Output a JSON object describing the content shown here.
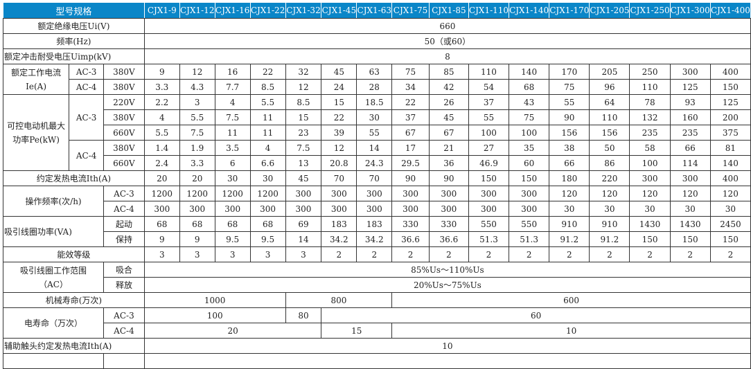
{
  "header": {
    "label": "型号规格",
    "models": [
      "CJX1-9",
      "CJX1-12",
      "CJX1-16",
      "CJX1-22",
      "CJX1-32",
      "CJX1-45",
      "CJX1-63",
      "CJX1-75",
      "CJX1-85",
      "CJX1-110",
      "CJX1-140",
      "CJX1-170",
      "CJX1-205",
      "CJX1-250",
      "CJX1-300",
      "CJX1-400"
    ]
  },
  "colors": {
    "header_bg": "#0A86C8",
    "header_text": "#FFFFFF"
  },
  "ui": {
    "label": "额定绝缘电压Ui(V)",
    "value": "660"
  },
  "freq": {
    "label": "频率(Hz)",
    "value": "50（或60）"
  },
  "uimp": {
    "label": "额定冲击耐受电压Uimp(kV)",
    "value": "8"
  },
  "ie": {
    "label": "额定工作电流Ie(A)",
    "rows": [
      {
        "cat": "AC-3",
        "volt": "380V",
        "values": [
          "9",
          "12",
          "16",
          "22",
          "32",
          "45",
          "63",
          "75",
          "85",
          "110",
          "140",
          "170",
          "205",
          "250",
          "300",
          "400"
        ]
      },
      {
        "cat": "AC-4",
        "volt": "380V",
        "values": [
          "3.3",
          "4.3",
          "7.7",
          "8.5",
          "12",
          "24",
          "28",
          "34",
          "42",
          "54",
          "68",
          "75",
          "96",
          "110",
          "125",
          "150"
        ]
      }
    ]
  },
  "pe": {
    "label": "可控电动机最大功率Pe(kW)",
    "ac3": "AC-3",
    "ac4": "AC-4",
    "rows": [
      {
        "volt": "220V",
        "values": [
          "2.2",
          "3",
          "4",
          "5.5",
          "8.5",
          "15",
          "18.5",
          "22",
          "26",
          "37",
          "43",
          "55",
          "64",
          "78",
          "93",
          "125"
        ]
      },
      {
        "volt": "380V",
        "values": [
          "4",
          "5.5",
          "7.5",
          "11",
          "15",
          "22",
          "30",
          "37",
          "45",
          "55",
          "75",
          "90",
          "110",
          "132",
          "160",
          "200"
        ]
      },
      {
        "volt": "660V",
        "values": [
          "5.5",
          "7.5",
          "11",
          "11",
          "23",
          "39",
          "55",
          "67",
          "67",
          "100",
          "100",
          "156",
          "156",
          "235",
          "235",
          "375"
        ]
      },
      {
        "volt": "380V",
        "values": [
          "1.4",
          "1.9",
          "3.5",
          "4",
          "7.5",
          "12",
          "14",
          "17",
          "21",
          "27",
          "35",
          "38",
          "50",
          "58",
          "66",
          "81"
        ]
      },
      {
        "volt": "660V",
        "values": [
          "2.4",
          "3.3",
          "6",
          "6.6",
          "13",
          "20.8",
          "24.3",
          "29.5",
          "36",
          "46.9",
          "60",
          "66",
          "86",
          "100",
          "114",
          "140"
        ]
      }
    ]
  },
  "ith": {
    "label": "约定发热电流Ith(A)",
    "values": [
      "20",
      "20",
      "30",
      "30",
      "45",
      "70",
      "70",
      "90",
      "90",
      "150",
      "150",
      "180",
      "220",
      "300",
      "300",
      "400"
    ]
  },
  "opfreq": {
    "label": "操作频率(次/h)",
    "rows": [
      {
        "cat": "AC-3",
        "values": [
          "1200",
          "1200",
          "1200",
          "1200",
          "300",
          "300",
          "300",
          "300",
          "300",
          "300",
          "300",
          "120",
          "120",
          "120",
          "120",
          "120"
        ]
      },
      {
        "cat": "AC-4",
        "values": [
          "300",
          "300",
          "300",
          "300",
          "300",
          "300",
          "300",
          "300",
          "300",
          "300",
          "300",
          "30",
          "30",
          "30",
          "30",
          "30"
        ]
      }
    ]
  },
  "coilpower": {
    "label": "吸引线圈功率(VA)",
    "rows": [
      {
        "cat": "起动",
        "values": [
          "68",
          "68",
          "68",
          "68",
          "69",
          "183",
          "183",
          "330",
          "330",
          "550",
          "550",
          "910",
          "910",
          "1430",
          "1430",
          "2450"
        ]
      },
      {
        "cat": "保持",
        "values": [
          "9",
          "9",
          "9.5",
          "9.5",
          "14",
          "34.2",
          "34.2",
          "36.6",
          "36.6",
          "51.3",
          "51.3",
          "91.2",
          "91.2",
          "150",
          "150",
          "150"
        ]
      }
    ]
  },
  "efficiency": {
    "label": "能效等级",
    "values": [
      "3",
      "3",
      "3",
      "3",
      "3",
      "2",
      "2",
      "2",
      "2",
      "2",
      "2",
      "2",
      "2",
      "2",
      "2",
      "2"
    ]
  },
  "coilrange": {
    "label": "吸引线圈工作范围（AC）",
    "rows": [
      {
        "cat": "吸合",
        "value": "85%Us～110%Us"
      },
      {
        "cat": "释放",
        "value": "20%Us～75%Us"
      }
    ]
  },
  "mechlife": {
    "label": "机械寿命(万次)",
    "values": [
      "1000",
      "800",
      "600"
    ]
  },
  "elife": {
    "label": "电寿命（万次）",
    "rows": [
      {
        "cat": "AC-3",
        "values": [
          "100",
          "80",
          "60"
        ]
      },
      {
        "cat": "AC-4",
        "values": [
          "20",
          "15",
          "10"
        ]
      }
    ]
  },
  "aux": {
    "label": "辅助触头约定发热电流Ith(A)",
    "value": "10"
  }
}
